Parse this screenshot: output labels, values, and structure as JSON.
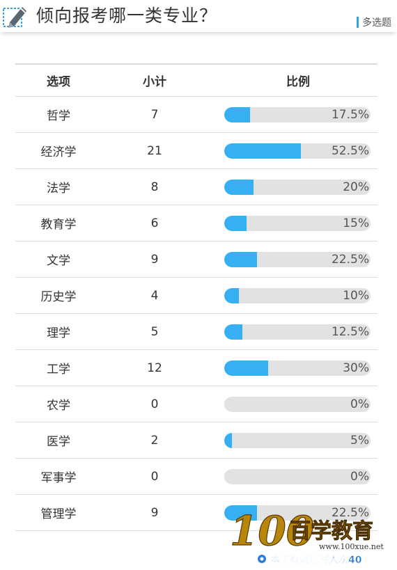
{
  "header": {
    "title": "倾向报考哪一类专业？",
    "badge": "多选题",
    "icon": "pencil-icon"
  },
  "table": {
    "columns": [
      "选项",
      "小计",
      "比例"
    ],
    "rows": [
      {
        "option": "哲学",
        "count": "7",
        "percent": "17.5%",
        "ratio": 0.175
      },
      {
        "option": "经济学",
        "count": "21",
        "percent": "52.5%",
        "ratio": 0.525
      },
      {
        "option": "法学",
        "count": "8",
        "percent": "20%",
        "ratio": 0.2
      },
      {
        "option": "教育学",
        "count": "6",
        "percent": "15%",
        "ratio": 0.15
      },
      {
        "option": "文学",
        "count": "9",
        "percent": "22.5%",
        "ratio": 0.225
      },
      {
        "option": "历史学",
        "count": "4",
        "percent": "10%",
        "ratio": 0.1
      },
      {
        "option": "理学",
        "count": "5",
        "percent": "12.5%",
        "ratio": 0.125
      },
      {
        "option": "工学",
        "count": "12",
        "percent": "30%",
        "ratio": 0.3
      },
      {
        "option": "农学",
        "count": "0",
        "percent": "0%",
        "ratio": 0.0
      },
      {
        "option": "医学",
        "count": "2",
        "percent": "5%",
        "ratio": 0.05
      },
      {
        "option": "军事学",
        "count": "0",
        "percent": "0%",
        "ratio": 0.0
      },
      {
        "option": "管理学",
        "count": "9",
        "percent": "22.5%",
        "ratio": 0.225
      }
    ]
  },
  "watermark": {
    "logo_number": "100",
    "logo_text": "百学教育",
    "url": "www.100xue.net",
    "footer": "本题有效填写人次40"
  },
  "colors": {
    "accent": "#36b0f3",
    "track": "#e2e2e2",
    "badge_bar": "#2ba6e1",
    "logo": "#b8860b",
    "footer": "#2a7fd4"
  }
}
